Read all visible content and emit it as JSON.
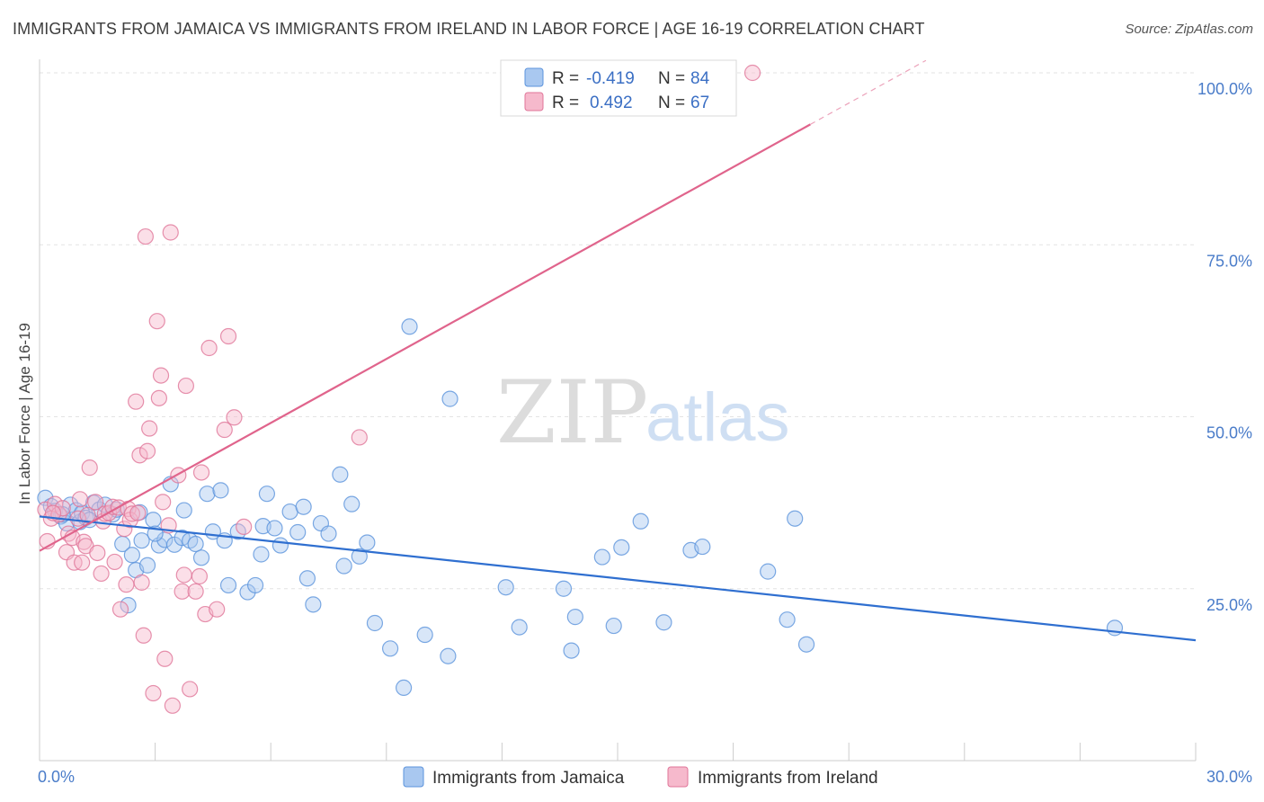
{
  "title": "IMMIGRANTS FROM JAMAICA VS IMMIGRANTS FROM IRELAND IN LABOR FORCE | AGE 16-19 CORRELATION CHART",
  "source": "Source: ZipAtlas.com",
  "watermark": {
    "zip": "ZIP",
    "atlas": "atlas"
  },
  "legend": {
    "r_label": "R =",
    "n_label": "N =",
    "rows": [
      {
        "r": "-0.419",
        "n": "84",
        "color": "#a9c8f0"
      },
      {
        "r": "0.492",
        "n": "67",
        "color": "#f6b9cc"
      }
    ]
  },
  "bottom_legend": [
    "Immigrants from Jamaica",
    "Immigrants from Ireland"
  ],
  "chart_data": {
    "type": "scatter",
    "title": "IMMIGRANTS FROM JAMAICA VS IMMIGRANTS FROM IRELAND IN LABOR FORCE | AGE 16-19 CORRELATION CHART",
    "xlabel": "",
    "ylabel": "In Labor Force | Age 16-19",
    "xlim": [
      0,
      30
    ],
    "ylim": [
      0,
      100
    ],
    "x_tick_labels": [
      "0.0%",
      "30.0%"
    ],
    "y_ticks": [
      25,
      50,
      75,
      100
    ],
    "y_tick_labels": [
      "25.0%",
      "50.0%",
      "75.0%",
      "100.0%"
    ],
    "grid": true,
    "legend_position": "top-center",
    "series": [
      {
        "name": "Immigrants from Jamaica",
        "color": "#5b93dc",
        "fill": "#a9c8f0",
        "trend": {
          "x": [
            0,
            30
          ],
          "y": [
            35.5,
            17.5
          ],
          "color": "#2f6fd0"
        },
        "points": [
          [
            0.15,
            38.2
          ],
          [
            0.3,
            37.0
          ],
          [
            0.4,
            36.3
          ],
          [
            0.55,
            35.5
          ],
          [
            0.7,
            34.5
          ],
          [
            0.8,
            37.2
          ],
          [
            0.95,
            36.4
          ],
          [
            1.05,
            34.7
          ],
          [
            1.1,
            36.0
          ],
          [
            1.2,
            35.3
          ],
          [
            1.4,
            37.5
          ],
          [
            1.55,
            36.5
          ],
          [
            1.7,
            37.2
          ],
          [
            1.9,
            35.8
          ],
          [
            2.0,
            36.5
          ],
          [
            2.15,
            31.5
          ],
          [
            2.3,
            22.6
          ],
          [
            2.4,
            29.9
          ],
          [
            2.5,
            27.7
          ],
          [
            2.65,
            32.0
          ],
          [
            2.8,
            28.4
          ],
          [
            2.95,
            35.0
          ],
          [
            3.1,
            31.3
          ],
          [
            3.25,
            32.1
          ],
          [
            3.4,
            40.2
          ],
          [
            3.5,
            31.4
          ],
          [
            3.7,
            32.4
          ],
          [
            3.75,
            36.4
          ],
          [
            3.9,
            32.0
          ],
          [
            4.05,
            31.5
          ],
          [
            4.2,
            29.5
          ],
          [
            4.35,
            38.8
          ],
          [
            4.5,
            33.3
          ],
          [
            4.7,
            39.3
          ],
          [
            4.8,
            32.0
          ],
          [
            4.9,
            25.5
          ],
          [
            5.15,
            33.3
          ],
          [
            5.4,
            24.5
          ],
          [
            5.6,
            25.5
          ],
          [
            5.75,
            30.0
          ],
          [
            5.8,
            34.1
          ],
          [
            5.9,
            38.8
          ],
          [
            6.1,
            33.8
          ],
          [
            6.25,
            31.3
          ],
          [
            6.5,
            36.2
          ],
          [
            6.7,
            33.2
          ],
          [
            6.85,
            36.9
          ],
          [
            6.95,
            26.5
          ],
          [
            7.1,
            22.7
          ],
          [
            7.3,
            34.5
          ],
          [
            7.5,
            33.0
          ],
          [
            7.8,
            41.6
          ],
          [
            7.9,
            28.3
          ],
          [
            8.1,
            37.3
          ],
          [
            8.3,
            29.7
          ],
          [
            8.5,
            31.7
          ],
          [
            8.7,
            20.0
          ],
          [
            9.1,
            16.3
          ],
          [
            9.45,
            10.6
          ],
          [
            9.6,
            63.1
          ],
          [
            10.0,
            18.3
          ],
          [
            10.6,
            15.2
          ],
          [
            10.65,
            52.6
          ],
          [
            12.1,
            25.2
          ],
          [
            12.45,
            19.4
          ],
          [
            13.6,
            25.0
          ],
          [
            13.8,
            16.0
          ],
          [
            13.9,
            20.9
          ],
          [
            14.6,
            29.6
          ],
          [
            14.9,
            19.6
          ],
          [
            15.1,
            31.0
          ],
          [
            15.6,
            34.8
          ],
          [
            16.2,
            20.1
          ],
          [
            16.9,
            30.6
          ],
          [
            17.2,
            31.1
          ],
          [
            18.9,
            27.5
          ],
          [
            19.4,
            20.5
          ],
          [
            19.6,
            35.2
          ],
          [
            19.9,
            16.9
          ],
          [
            27.9,
            19.3
          ],
          [
            0.6,
            35.8
          ],
          [
            1.3,
            35.0
          ],
          [
            2.6,
            36.1
          ],
          [
            3.0,
            33.0
          ]
        ]
      },
      {
        "name": "Immigrants from Ireland",
        "color": "#e07599",
        "fill": "#f6b9cc",
        "trend": {
          "x": [
            0,
            20
          ],
          "y": [
            30.5,
            92.5
          ],
          "color": "#e0648c"
        },
        "trend_extension": {
          "x": [
            20,
            23
          ],
          "y": [
            92.5,
            101.8
          ]
        },
        "points": [
          [
            0.15,
            36.5
          ],
          [
            0.2,
            31.9
          ],
          [
            0.3,
            35.2
          ],
          [
            0.4,
            37.3
          ],
          [
            0.5,
            35.8
          ],
          [
            0.6,
            36.7
          ],
          [
            0.7,
            30.3
          ],
          [
            0.75,
            33.0
          ],
          [
            0.85,
            32.4
          ],
          [
            0.9,
            28.8
          ],
          [
            1.0,
            35.2
          ],
          [
            1.05,
            38.0
          ],
          [
            1.1,
            28.8
          ],
          [
            1.15,
            31.8
          ],
          [
            1.2,
            31.2
          ],
          [
            1.25,
            35.7
          ],
          [
            1.3,
            42.6
          ],
          [
            1.45,
            37.6
          ],
          [
            1.5,
            30.2
          ],
          [
            1.6,
            27.2
          ],
          [
            1.65,
            34.8
          ],
          [
            1.7,
            35.9
          ],
          [
            1.8,
            36.0
          ],
          [
            1.9,
            36.9
          ],
          [
            1.95,
            28.9
          ],
          [
            2.05,
            36.8
          ],
          [
            2.1,
            22.0
          ],
          [
            2.2,
            33.7
          ],
          [
            2.25,
            25.6
          ],
          [
            2.3,
            36.6
          ],
          [
            2.35,
            35.0
          ],
          [
            2.4,
            35.9
          ],
          [
            2.5,
            52.2
          ],
          [
            2.55,
            36.0
          ],
          [
            2.6,
            44.4
          ],
          [
            2.65,
            25.9
          ],
          [
            2.7,
            18.2
          ],
          [
            2.75,
            76.2
          ],
          [
            2.8,
            45.0
          ],
          [
            2.85,
            48.3
          ],
          [
            2.95,
            9.8
          ],
          [
            3.05,
            63.9
          ],
          [
            3.1,
            52.7
          ],
          [
            3.15,
            56.0
          ],
          [
            3.2,
            37.6
          ],
          [
            3.25,
            14.8
          ],
          [
            3.35,
            34.2
          ],
          [
            3.4,
            76.8
          ],
          [
            3.45,
            8.0
          ],
          [
            3.6,
            41.5
          ],
          [
            3.7,
            24.6
          ],
          [
            3.75,
            27.0
          ],
          [
            3.8,
            54.5
          ],
          [
            3.9,
            10.4
          ],
          [
            4.05,
            24.6
          ],
          [
            4.15,
            26.8
          ],
          [
            4.2,
            41.9
          ],
          [
            4.3,
            21.3
          ],
          [
            4.4,
            60.0
          ],
          [
            4.6,
            22.0
          ],
          [
            4.8,
            48.1
          ],
          [
            4.9,
            61.7
          ],
          [
            5.05,
            49.9
          ],
          [
            5.3,
            34.0
          ],
          [
            8.3,
            47.0
          ],
          [
            18.5,
            100.0
          ],
          [
            0.35,
            36.0
          ]
        ]
      }
    ]
  }
}
